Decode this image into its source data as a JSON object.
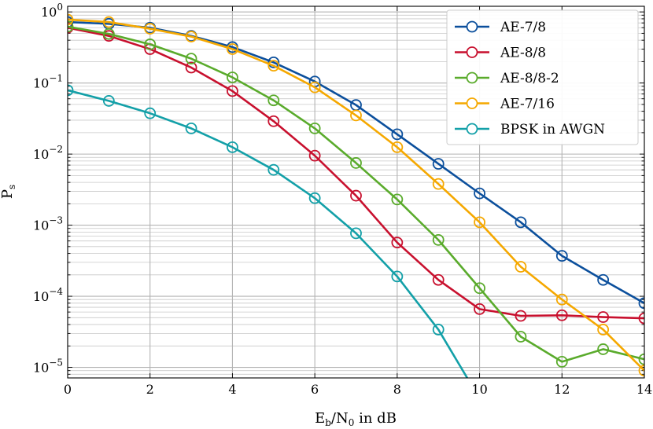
{
  "chart_data": {
    "type": "line",
    "xlabel": "E_b/N_0 in dB",
    "ylabel": "P_s",
    "xlim": [
      0,
      14
    ],
    "ylim": [
      7.1e-06,
      1.2
    ],
    "yscale": "log",
    "grid": true,
    "legend_position": "top-right",
    "x_ticks": [
      0,
      2,
      4,
      6,
      8,
      10,
      12,
      14
    ],
    "y_ticks": [
      {
        "value": 1,
        "mantissa": "10",
        "exponent": "0"
      },
      {
        "value": 0.1,
        "mantissa": "10",
        "exponent": "−1"
      },
      {
        "value": 0.01,
        "mantissa": "10",
        "exponent": "−2"
      },
      {
        "value": 0.001,
        "mantissa": "10",
        "exponent": "−3"
      },
      {
        "value": 0.0001,
        "mantissa": "10",
        "exponent": "−4"
      },
      {
        "value": 1e-05,
        "mantissa": "10",
        "exponent": "−5"
      }
    ],
    "series": [
      {
        "name": "AE-7/8",
        "color": "#0b4f9c",
        "x": [
          0,
          1,
          2,
          3,
          4,
          5,
          6,
          7,
          8,
          9,
          10,
          11,
          12,
          13,
          14
        ],
        "values": [
          0.72,
          0.68,
          0.6,
          0.46,
          0.32,
          0.195,
          0.105,
          0.049,
          0.019,
          0.0073,
          0.0028,
          0.0011,
          0.00037,
          0.00017,
          8e-05
        ]
      },
      {
        "name": "AE-8/8",
        "color": "#c8102e",
        "x": [
          0,
          1,
          2,
          3,
          4,
          5,
          6,
          7,
          8,
          9,
          10,
          11,
          12,
          13,
          14
        ],
        "values": [
          0.6,
          0.46,
          0.3,
          0.165,
          0.077,
          0.029,
          0.0095,
          0.0026,
          0.00057,
          0.00017,
          6.6e-05,
          5.3e-05,
          5.4e-05,
          5.1e-05,
          4.9e-05
        ]
      },
      {
        "name": "AE-8/8-2",
        "color": "#5aab2c",
        "x": [
          0,
          1,
          2,
          3,
          4,
          5,
          6,
          7,
          8,
          9,
          10,
          11,
          12,
          13,
          14
        ],
        "values": [
          0.62,
          0.49,
          0.35,
          0.22,
          0.12,
          0.057,
          0.023,
          0.0075,
          0.0023,
          0.00062,
          0.00013,
          2.7e-05,
          1.2e-05,
          1.8e-05,
          1.3e-05
        ]
      },
      {
        "name": "AE-7/16",
        "color": "#f5a800",
        "x": [
          0,
          1,
          2,
          3,
          4,
          5,
          6,
          7,
          8,
          9,
          10,
          11,
          12,
          13,
          14
        ],
        "values": [
          0.78,
          0.72,
          0.58,
          0.45,
          0.3,
          0.175,
          0.087,
          0.035,
          0.0125,
          0.0038,
          0.0011,
          0.00026,
          9e-05,
          3.4e-05,
          9e-06
        ]
      },
      {
        "name": "BPSK in AWGN",
        "color": "#13a0a8",
        "marker_x": [
          0,
          1,
          2,
          3,
          4,
          5,
          6,
          7,
          8,
          9
        ],
        "x": [
          0,
          1,
          2,
          3,
          4,
          5,
          6,
          7,
          8,
          9,
          9.7
        ],
        "values": [
          0.079,
          0.056,
          0.0375,
          0.023,
          0.0125,
          0.006,
          0.0024,
          0.00077,
          0.00019,
          3.4e-05,
          7.1e-06
        ]
      }
    ]
  }
}
